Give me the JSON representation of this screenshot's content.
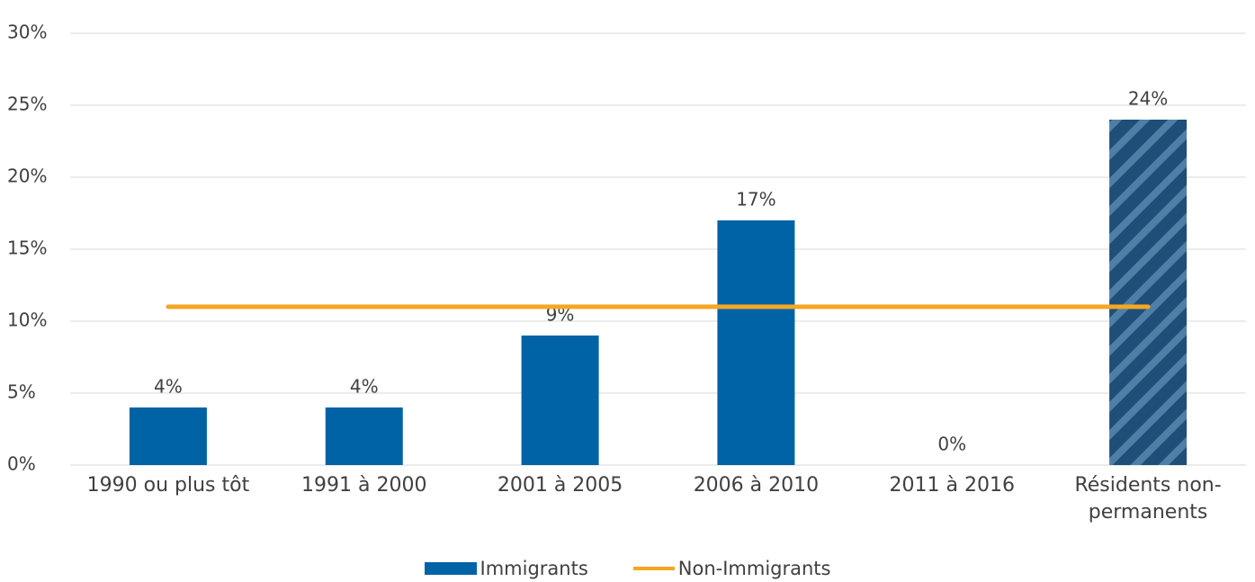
{
  "chart_data": {
    "type": "bar",
    "categories": [
      "1990 ou plus tôt",
      "1991 à 2000",
      "2001 à 2005",
      "2006 à 2010",
      "2011 à 2016",
      "Résidents non-permanents"
    ],
    "series": [
      {
        "name": "Immigrants",
        "type": "bar",
        "color": "#0063a6",
        "hatched": [
          false,
          false,
          false,
          false,
          false,
          true
        ],
        "values": [
          4,
          4,
          9,
          17,
          0,
          24
        ],
        "value_labels": [
          "4%",
          "4%",
          "9%",
          "17%",
          "0%",
          "24%"
        ]
      },
      {
        "name": "Non-Immigrants",
        "type": "line",
        "color": "#f5a623",
        "values": [
          11,
          11,
          11,
          11,
          11,
          11
        ]
      }
    ],
    "ylim": [
      0,
      30
    ],
    "yticks": [
      {
        "value": 0,
        "label": "0%"
      },
      {
        "value": 5,
        "label": "5%"
      },
      {
        "value": 10,
        "label": "10%"
      },
      {
        "value": 15,
        "label": "15%"
      },
      {
        "value": 20,
        "label": "20%"
      },
      {
        "value": 25,
        "label": "25%"
      },
      {
        "value": 30,
        "label": "30%"
      }
    ],
    "grid": true,
    "legend": "bottom"
  }
}
